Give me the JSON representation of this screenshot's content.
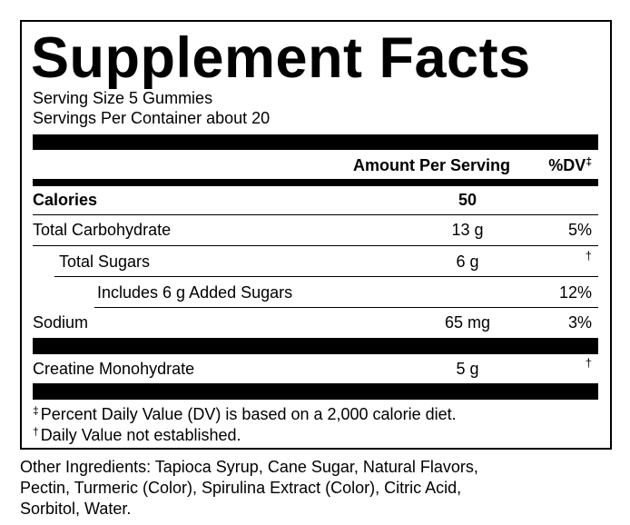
{
  "label": {
    "title": "Supplement Facts",
    "serving_size": "Serving Size 5 Gummies",
    "servings_per_container": "Servings Per Container about 20",
    "header": {
      "amount": "Amount Per Serving",
      "dv": "%DV",
      "dv_mark": "‡"
    },
    "rows": [
      {
        "name": "Calories",
        "amount": "50",
        "dv": null
      },
      {
        "name": "Total Carbohydrate",
        "amount": "13 g",
        "dv": "5%"
      },
      {
        "name": "Total Sugars",
        "amount": "6 g",
        "dv": "†"
      },
      {
        "name": "Includes 6 g Added Sugars",
        "amount": null,
        "dv": "12%"
      },
      {
        "name": "Sodium",
        "amount": "65 mg",
        "dv": "3%"
      },
      {
        "name": "Creatine Monohydrate",
        "amount": "5 g",
        "dv": "†"
      }
    ],
    "footnotes": [
      {
        "mark": "‡",
        "text": "Percent Daily Value (DV) is based on a 2,000 calorie diet."
      },
      {
        "mark": "†",
        "text": "Daily Value not established."
      }
    ]
  },
  "other_ingredients": [
    "Other Ingredients: Tapioca Syrup, Cane Sugar, Natural Flavors,",
    "Pectin, Turmeric (Color), Spirulina Extract (Color), Citric Acid,",
    "Sorbitol, Water."
  ]
}
